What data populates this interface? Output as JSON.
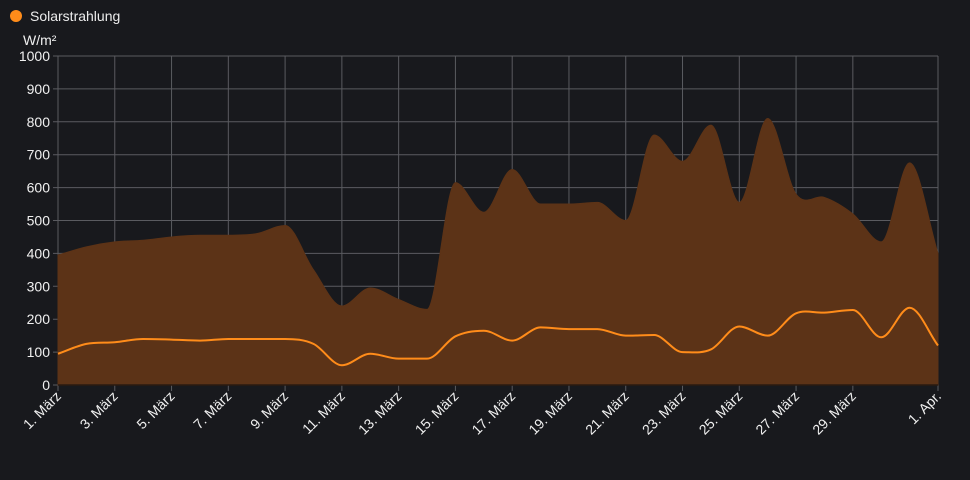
{
  "legend": {
    "label": "Solarstrahlung",
    "color": "#ff8c1a"
  },
  "colors": {
    "background": "#18191d",
    "grid": "#5a5b60",
    "area_fill": "#5c3317",
    "area_stroke": "#5c3317",
    "line": "#ff8c1a",
    "axis_text": "#f0f0f0"
  },
  "chart_data": {
    "type": "area",
    "ylabel": "W/m²",
    "ylim": [
      0,
      1000
    ],
    "yticks": [
      0,
      100,
      200,
      300,
      400,
      500,
      600,
      700,
      800,
      900,
      1000
    ],
    "xlim": [
      1,
      32
    ],
    "xticks": [
      {
        "x": 1,
        "label": "1. März"
      },
      {
        "x": 3,
        "label": "3. März"
      },
      {
        "x": 5,
        "label": "5. März"
      },
      {
        "x": 7,
        "label": "7. März"
      },
      {
        "x": 9,
        "label": "9. März"
      },
      {
        "x": 11,
        "label": "11. März"
      },
      {
        "x": 13,
        "label": "13. März"
      },
      {
        "x": 15,
        "label": "15. März"
      },
      {
        "x": 17,
        "label": "17. März"
      },
      {
        "x": 19,
        "label": "19. März"
      },
      {
        "x": 21,
        "label": "21. März"
      },
      {
        "x": 23,
        "label": "23. März"
      },
      {
        "x": 25,
        "label": "25. März"
      },
      {
        "x": 27,
        "label": "27. März"
      },
      {
        "x": 29,
        "label": "29. März"
      },
      {
        "x": 32,
        "label": "1. Apr."
      }
    ],
    "grid": true,
    "legend_position": "top-left",
    "series": [
      {
        "name": "Solarstrahlung",
        "role": "max-area",
        "x": [
          1,
          2,
          3,
          4,
          5,
          6,
          7,
          8,
          9,
          10,
          11,
          12,
          13,
          14,
          15,
          16,
          17,
          18,
          19,
          20,
          21,
          22,
          23,
          24,
          25,
          26,
          27,
          28,
          29,
          30,
          31,
          32
        ],
        "values": [
          395,
          420,
          435,
          440,
          450,
          455,
          455,
          460,
          485,
          350,
          240,
          295,
          260,
          230,
          615,
          525,
          655,
          550,
          550,
          555,
          500,
          760,
          680,
          790,
          555,
          810,
          580,
          570,
          520,
          435,
          675,
          400
        ]
      },
      {
        "name": "Solarstrahlung",
        "role": "average-line",
        "x": [
          1,
          2,
          3,
          4,
          5,
          6,
          7,
          8,
          9,
          10,
          11,
          12,
          13,
          14,
          15,
          16,
          17,
          18,
          19,
          20,
          21,
          22,
          23,
          24,
          25,
          26,
          27,
          28,
          29,
          30,
          31,
          32
        ],
        "values": [
          95,
          125,
          130,
          140,
          138,
          135,
          140,
          140,
          140,
          125,
          60,
          95,
          80,
          80,
          148,
          165,
          135,
          175,
          170,
          170,
          150,
          152,
          100,
          108,
          178,
          150,
          218,
          220,
          228,
          145,
          235,
          120
        ]
      },
      {
        "name": "Solarstrahlung",
        "role": "min-area",
        "x": [
          1,
          32
        ],
        "values": [
          0,
          0
        ]
      }
    ]
  }
}
